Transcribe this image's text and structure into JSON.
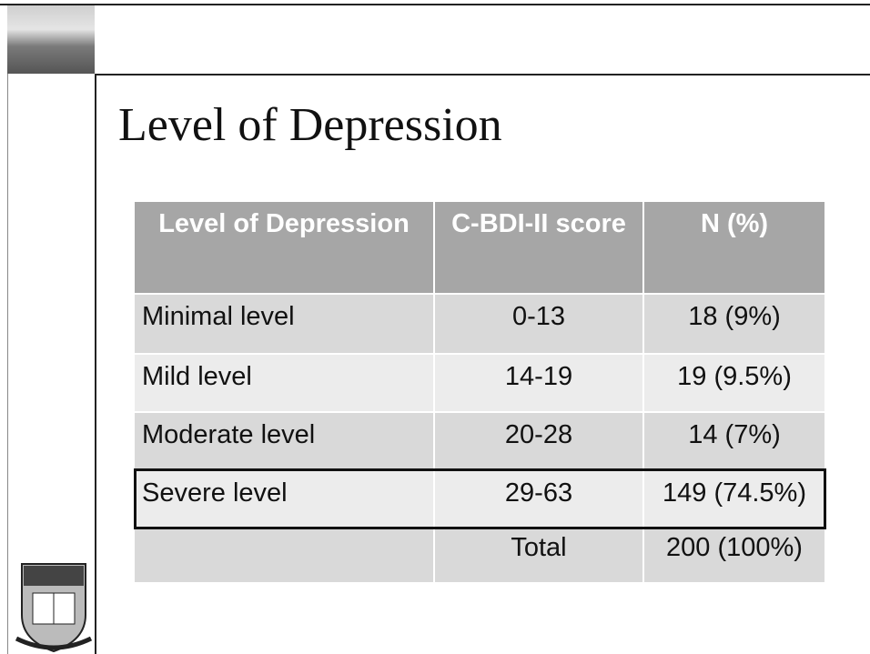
{
  "title": "Level of Depression",
  "table": {
    "header": [
      "Level of Depression",
      "C-BDI-II score",
      "N (%)"
    ],
    "rows": [
      [
        "Minimal level",
        "0-13",
        "18 (9%)"
      ],
      [
        "Mild level",
        "14-19",
        "19 (9.5%)"
      ],
      [
        "Moderate level",
        "20-28",
        "14 (7%)"
      ],
      [
        "Severe level",
        "29-63",
        "149 (74.5%)"
      ]
    ],
    "total": {
      "label": "Total",
      "value": "200 (100%)"
    }
  }
}
